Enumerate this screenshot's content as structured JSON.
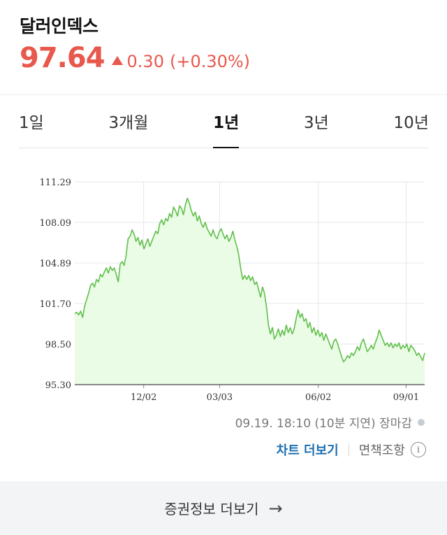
{
  "header": {
    "title": "달러인덱스",
    "price": "97.64",
    "change": "0.30",
    "change_pct": "(+0.30%)",
    "direction": "up",
    "accent_color": "#e8584d"
  },
  "tabs": [
    {
      "label": "1일",
      "active": false
    },
    {
      "label": "3개월",
      "active": false
    },
    {
      "label": "1년",
      "active": true
    },
    {
      "label": "3년",
      "active": false
    },
    {
      "label": "10년",
      "active": false
    }
  ],
  "chart_data": {
    "type": "area",
    "ylim": [
      95.3,
      111.29
    ],
    "y_ticks": [
      "111.29",
      "108.09",
      "104.89",
      "101.70",
      "98.50",
      "95.30"
    ],
    "x_ticks": [
      "12/02",
      "03/03",
      "06/02",
      "09/01"
    ],
    "grid": true,
    "line_color": "#5fbf4a",
    "fill_color": "#eafbe6",
    "values": [
      100.9,
      101.0,
      100.8,
      101.1,
      100.6,
      101.5,
      102.0,
      102.5,
      103.1,
      103.3,
      103.0,
      103.6,
      103.4,
      104.0,
      103.8,
      104.2,
      104.5,
      104.1,
      104.6,
      104.3,
      104.5,
      104.0,
      103.4,
      104.8,
      105.0,
      104.7,
      105.5,
      106.8,
      107.0,
      107.5,
      107.2,
      106.6,
      106.9,
      106.3,
      106.7,
      106.0,
      106.4,
      106.8,
      106.2,
      106.6,
      107.0,
      107.4,
      107.2,
      108.0,
      108.3,
      107.9,
      108.4,
      108.2,
      108.8,
      108.5,
      109.3,
      109.0,
      108.6,
      109.4,
      109.2,
      108.7,
      109.5,
      110.0,
      109.6,
      109.0,
      108.6,
      108.9,
      108.2,
      108.6,
      108.0,
      107.7,
      108.1,
      107.6,
      107.3,
      107.0,
      107.5,
      107.0,
      106.8,
      107.3,
      107.6,
      107.2,
      106.8,
      107.1,
      106.6,
      106.9,
      107.4,
      106.7,
      106.2,
      105.5,
      104.4,
      103.6,
      103.9,
      103.6,
      103.9,
      103.5,
      103.8,
      103.2,
      103.4,
      102.8,
      102.2,
      103.0,
      102.5,
      101.4,
      100.0,
      99.3,
      99.8,
      98.9,
      99.2,
      99.7,
      99.1,
      99.6,
      99.2,
      100.0,
      99.4,
      99.8,
      99.3,
      99.7,
      100.5,
      101.2,
      100.6,
      100.9,
      100.3,
      100.5,
      99.8,
      100.2,
      99.4,
      99.8,
      99.2,
      99.6,
      99.1,
      99.4,
      98.8,
      99.3,
      98.9,
      98.5,
      98.1,
      98.7,
      98.9,
      98.5,
      98.0,
      97.5,
      97.1,
      97.3,
      97.6,
      97.4,
      97.8,
      97.6,
      97.9,
      98.3,
      98.0,
      98.6,
      98.9,
      98.4,
      97.9,
      98.1,
      98.4,
      98.1,
      98.6,
      99.0,
      99.6,
      99.2,
      98.8,
      98.4,
      98.6,
      98.3,
      98.6,
      98.2,
      98.5,
      98.3,
      98.6,
      98.1,
      98.4,
      98.2,
      98.5,
      97.9,
      98.4,
      98.2,
      98.0,
      97.6,
      97.8,
      97.5,
      97.2,
      97.8
    ]
  },
  "status": {
    "timestamp": "09.19. 18:10 (10분 지연) 장마감"
  },
  "links": {
    "chart_more": "차트 더보기",
    "disclaimer": "면책조항"
  },
  "footer": {
    "label": "증권정보 더보기"
  }
}
